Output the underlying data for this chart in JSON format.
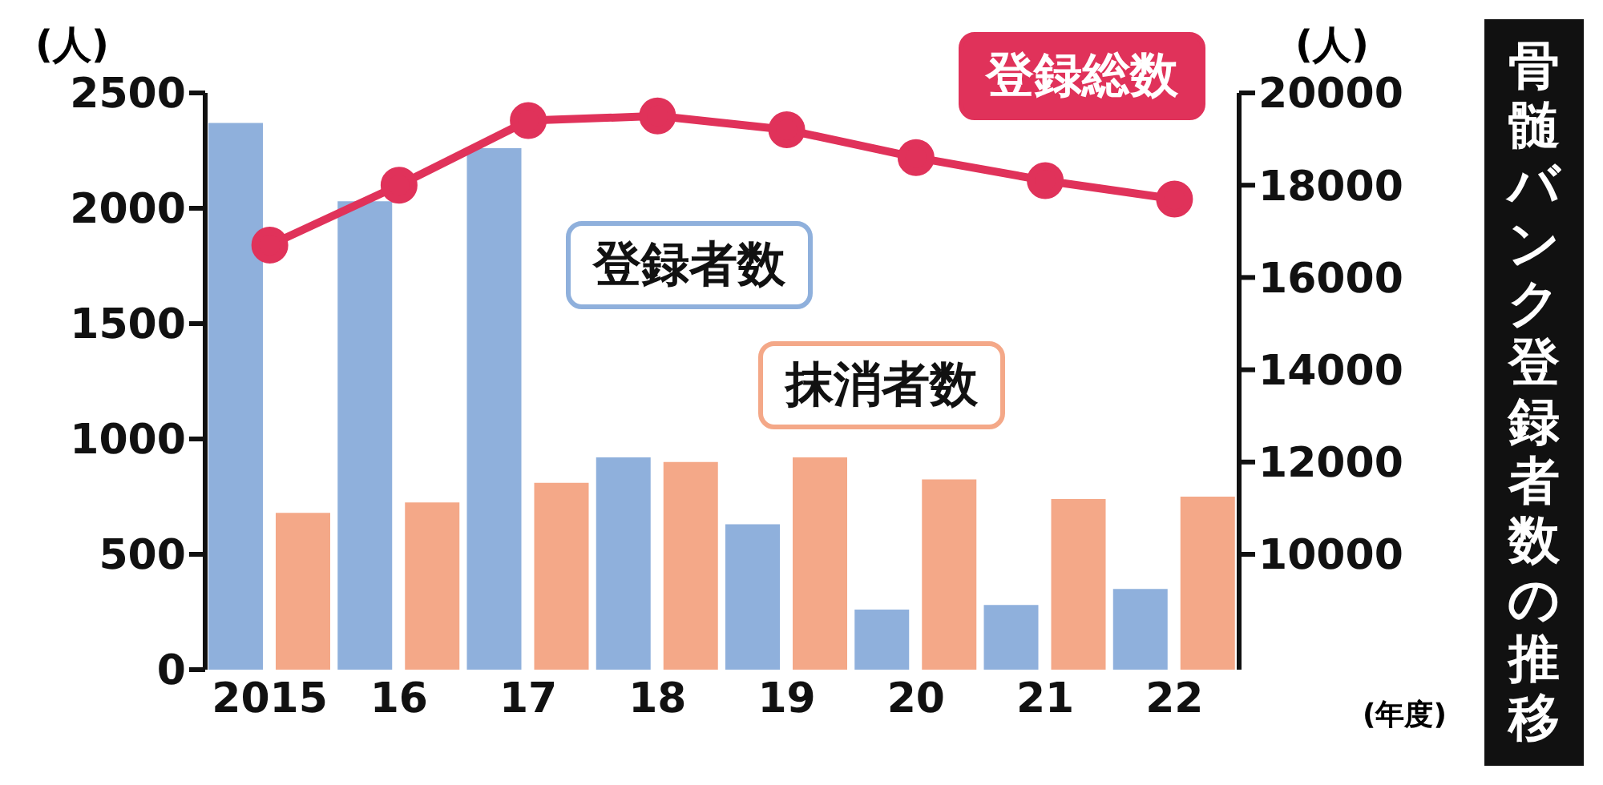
{
  "chart_data": {
    "type": "bar",
    "title": "骨髄バンク登録者数の推移",
    "ylabel": "(人)",
    "y2label": "(人)",
    "xlabel": "(年度)",
    "categories": [
      "2015",
      "16",
      "17",
      "18",
      "19",
      "20",
      "21",
      "22"
    ],
    "series": [
      {
        "name": "登録者数",
        "color": "#8fb0dc",
        "values": [
          2370,
          2030,
          2260,
          920,
          630,
          260,
          280,
          350
        ]
      },
      {
        "name": "抹消者数",
        "color": "#f4a888",
        "values": [
          680,
          725,
          810,
          900,
          920,
          825,
          740,
          750
        ]
      },
      {
        "name": "登録総数",
        "type": "line",
        "axis": "y2",
        "color": "#e0325a",
        "values": [
          16700,
          18000,
          19400,
          19500,
          19200,
          18600,
          18100,
          17700
        ]
      }
    ],
    "ylim": [
      0,
      2500
    ],
    "yticks": [
      0,
      500,
      1000,
      1500,
      2000,
      2500
    ],
    "y2lim": [
      7500,
      20000
    ],
    "y2ticks": [
      10000,
      12000,
      14000,
      16000,
      18000,
      20000
    ],
    "marker": "circle",
    "grid": false,
    "legend": false
  }
}
